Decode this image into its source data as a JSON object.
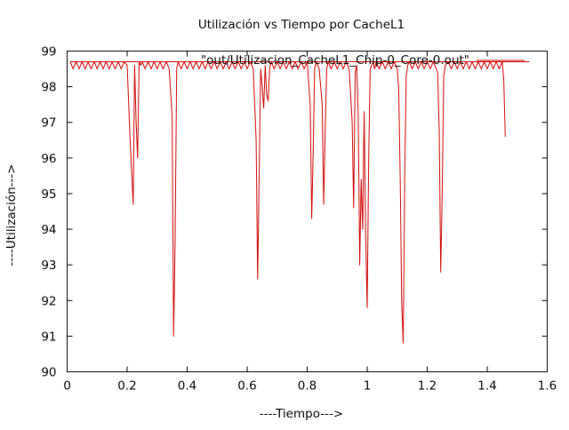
{
  "chart_data": {
    "type": "line",
    "title": "Utilización vs Tiempo por CacheL1",
    "xlabel": "----Tiempo--->",
    "ylabel": "----Utilización--->",
    "xlim": [
      0,
      1.6
    ],
    "ylim": [
      90,
      99
    ],
    "xticks": [
      0,
      0.2,
      0.4,
      0.6,
      0.8,
      1,
      1.2,
      1.4,
      1.6
    ],
    "xtick_labels": [
      "0",
      "0.2",
      "0.4",
      "0.6",
      "0.8",
      "1",
      "1.2",
      "1.4",
      "1.6"
    ],
    "yticks": [
      90,
      91,
      92,
      93,
      94,
      95,
      96,
      97,
      98,
      99
    ],
    "ytick_labels": [
      "90",
      "91",
      "92",
      "93",
      "94",
      "95",
      "96",
      "97",
      "98",
      "99"
    ],
    "grid": false,
    "legend_position": "top-right",
    "series": [
      {
        "name": "\"out/Utilizacion_CacheL1_Chip-0_Core-0.out\"",
        "color": "#cc0000",
        "x": [
          0.01,
          0.02,
          0.03,
          0.04,
          0.05,
          0.06,
          0.07,
          0.08,
          0.09,
          0.1,
          0.11,
          0.12,
          0.13,
          0.14,
          0.15,
          0.16,
          0.17,
          0.18,
          0.19,
          0.2,
          0.21,
          0.22,
          0.225,
          0.23,
          0.235,
          0.24,
          0.245,
          0.25,
          0.26,
          0.27,
          0.28,
          0.29,
          0.3,
          0.31,
          0.32,
          0.33,
          0.34,
          0.35,
          0.355,
          0.36,
          0.365,
          0.37,
          0.38,
          0.39,
          0.4,
          0.41,
          0.42,
          0.43,
          0.44,
          0.45,
          0.46,
          0.47,
          0.48,
          0.49,
          0.5,
          0.51,
          0.52,
          0.53,
          0.54,
          0.55,
          0.56,
          0.57,
          0.58,
          0.59,
          0.6,
          0.61,
          0.62,
          0.63,
          0.635,
          0.64,
          0.645,
          0.65,
          0.655,
          0.66,
          0.665,
          0.67,
          0.675,
          0.68,
          0.69,
          0.7,
          0.71,
          0.72,
          0.73,
          0.74,
          0.75,
          0.76,
          0.77,
          0.78,
          0.79,
          0.8,
          0.81,
          0.815,
          0.82,
          0.825,
          0.83,
          0.84,
          0.85,
          0.855,
          0.86,
          0.865,
          0.87,
          0.88,
          0.89,
          0.9,
          0.91,
          0.92,
          0.93,
          0.94,
          0.95,
          0.955,
          0.96,
          0.965,
          0.97,
          0.975,
          0.98,
          0.985,
          0.99,
          0.995,
          1.0,
          1.005,
          1.01,
          1.015,
          1.02,
          1.025,
          1.03,
          1.04,
          1.05,
          1.06,
          1.07,
          1.08,
          1.09,
          1.1,
          1.105,
          1.11,
          1.115,
          1.12,
          1.125,
          1.13,
          1.135,
          1.14,
          1.15,
          1.16,
          1.17,
          1.18,
          1.19,
          1.2,
          1.21,
          1.22,
          1.23,
          1.235,
          1.24,
          1.245,
          1.25,
          1.255,
          1.26,
          1.27,
          1.28,
          1.29,
          1.3,
          1.31,
          1.32,
          1.33,
          1.34,
          1.35,
          1.36,
          1.37,
          1.38,
          1.39,
          1.4,
          1.41,
          1.42,
          1.43,
          1.44,
          1.45,
          1.455,
          1.46
        ],
        "y": [
          98.7,
          98.5,
          98.7,
          98.5,
          98.7,
          98.5,
          98.7,
          98.5,
          98.7,
          98.5,
          98.7,
          98.5,
          98.7,
          98.5,
          98.7,
          98.5,
          98.7,
          98.5,
          98.7,
          98.6,
          96.5,
          94.7,
          98.6,
          97.0,
          96.0,
          98.7,
          98.6,
          98.7,
          98.5,
          98.7,
          98.5,
          98.7,
          98.5,
          98.7,
          98.5,
          98.7,
          98.5,
          97.2,
          91.0,
          93.8,
          98.5,
          98.7,
          98.5,
          98.7,
          98.5,
          98.7,
          98.5,
          98.7,
          98.5,
          98.7,
          98.5,
          98.7,
          98.5,
          98.7,
          98.5,
          98.7,
          98.5,
          98.7,
          98.5,
          98.7,
          98.5,
          98.7,
          98.5,
          98.7,
          98.5,
          98.7,
          98.5,
          96.5,
          92.6,
          95.5,
          98.5,
          98.0,
          97.4,
          98.6,
          97.8,
          97.6,
          98.5,
          98.7,
          98.5,
          98.7,
          98.5,
          98.7,
          98.5,
          98.7,
          98.5,
          98.7,
          98.5,
          98.7,
          98.5,
          98.7,
          97.5,
          94.3,
          96.2,
          98.5,
          98.7,
          98.5,
          97.5,
          94.7,
          96.8,
          98.5,
          98.7,
          98.5,
          98.7,
          98.5,
          98.7,
          98.5,
          98.7,
          98.5,
          97.0,
          94.6,
          98.4,
          98.6,
          97.2,
          93.0,
          95.4,
          94.0,
          97.3,
          93.8,
          91.8,
          96.0,
          98.5,
          98.6,
          98.7,
          98.5,
          98.7,
          98.5,
          98.7,
          98.5,
          98.7,
          98.5,
          98.7,
          98.5,
          98.0,
          95.5,
          92.0,
          90.8,
          95.5,
          98.3,
          98.6,
          98.7,
          98.5,
          98.7,
          98.5,
          98.7,
          98.5,
          98.7,
          98.5,
          98.7,
          98.5,
          98.4,
          96.8,
          92.8,
          95.0,
          98.3,
          98.6,
          98.7,
          98.5,
          98.7,
          98.5,
          98.7,
          98.5,
          98.7,
          98.5,
          98.7,
          98.5,
          98.7,
          98.5,
          98.7,
          98.5,
          98.7,
          98.5,
          98.7,
          98.5,
          98.7,
          98.2,
          96.6
        ]
      },
      {
        "name": "",
        "color": "#cc0000",
        "x": [
          0.01,
          1.54
        ],
        "y": [
          98.7,
          98.7
        ]
      }
    ]
  }
}
